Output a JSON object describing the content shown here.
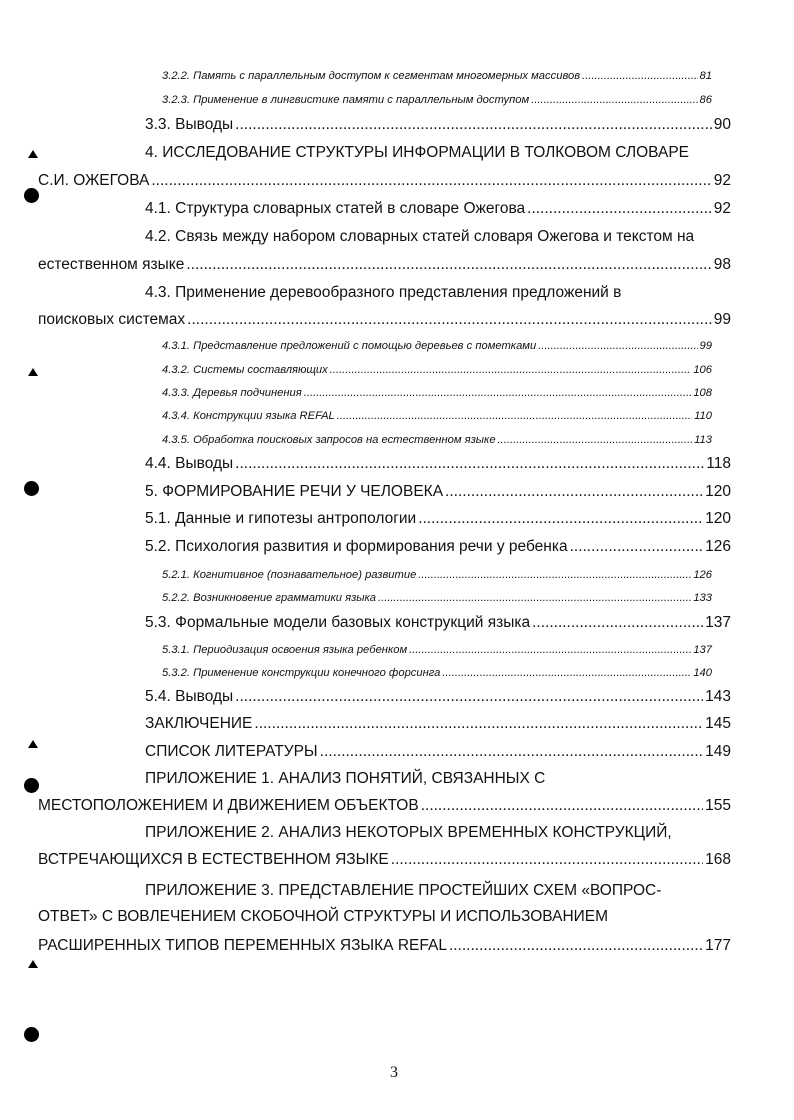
{
  "toc": [
    {
      "level": 3,
      "lines": [
        "3.2.2. Память с параллельным доступом к сегментам многомерных массивов"
      ],
      "page": "81"
    },
    {
      "level": 3,
      "lines": [
        "3.2.3. Применение в лингвистике памяти с параллельным доступом"
      ],
      "page": "86"
    },
    {
      "level": 2,
      "lines": [
        "3.3. Выводы"
      ],
      "page": "90"
    },
    {
      "level": 2,
      "lines": [
        "4. ИССЛЕДОВАНИЕ СТРУКТУРЫ ИНФОРМАЦИИ В ТОЛКОВОМ СЛОВАРЕ",
        "С.И. ОЖЕГОВА"
      ],
      "page": "92"
    },
    {
      "level": 2,
      "lines": [
        "4.1. Структура словарных статей в словаре Ожегова"
      ],
      "page": "92"
    },
    {
      "level": 2,
      "lines": [
        "4.2. Связь между набором словарных статей словаря Ожегова и текстом на",
        "естественном языке"
      ],
      "page": "98"
    },
    {
      "level": 2,
      "lines": [
        "4.3. Применение деревообразного представления предложений в",
        "поисковых системах"
      ],
      "page": "99"
    },
    {
      "level": 3,
      "lines": [
        "4.3.1. Представление предложений с помощью деревьев с пометками"
      ],
      "page": "99"
    },
    {
      "level": 3,
      "lines": [
        "4.3.2. Системы составляющих"
      ],
      "page": "106"
    },
    {
      "level": 3,
      "lines": [
        "4.3.3. Деревья подчинения"
      ],
      "page": "108"
    },
    {
      "level": 3,
      "lines": [
        "4.3.4. Конструкции языка REFAL"
      ],
      "page": "110"
    },
    {
      "level": 3,
      "lines": [
        "4.3.5. Обработка поисковых запросов на естественном языке"
      ],
      "page": "113"
    },
    {
      "level": 2,
      "lines": [
        "4.4. Выводы"
      ],
      "page": "118"
    },
    {
      "level": 2,
      "lines": [
        "5. ФОРМИРОВАНИЕ РЕЧИ У ЧЕЛОВЕКА"
      ],
      "page": "120"
    },
    {
      "level": 2,
      "lines": [
        "5.1. Данные и гипотезы антропологии"
      ],
      "page": "120"
    },
    {
      "level": 2,
      "lines": [
        "5.2. Психология развития и формирования речи у ребенка"
      ],
      "page": "126"
    },
    {
      "level": 3,
      "lines": [
        "5.2.1. Когнитивное (познавательное) развитие"
      ],
      "page": "126"
    },
    {
      "level": 3,
      "lines": [
        "5.2.2. Возникновение грамматики языка"
      ],
      "page": "133"
    },
    {
      "level": 2,
      "lines": [
        "5.3. Формальные модели базовых конструкций языка"
      ],
      "page": "137"
    },
    {
      "level": 3,
      "lines": [
        "5.3.1. Периодизация освоения языка ребенком"
      ],
      "page": "137"
    },
    {
      "level": 3,
      "lines": [
        "5.3.2. Применение конструкции конечного форсинга"
      ],
      "page": "140"
    },
    {
      "level": 2,
      "lines": [
        "5.4. Выводы"
      ],
      "page": "143"
    },
    {
      "level": 2,
      "lines": [
        "ЗАКЛЮЧЕНИЕ"
      ],
      "page": "145"
    },
    {
      "level": 2,
      "lines": [
        "СПИСОК ЛИТЕРАТУРЫ"
      ],
      "page": "149"
    },
    {
      "level": 2,
      "lines": [
        "ПРИЛОЖЕНИЕ 1. АНАЛИЗ ПОНЯТИЙ, СВЯЗАННЫХ С",
        "МЕСТОПОЛОЖЕНИЕМ И ДВИЖЕНИЕМ ОБЪЕКТОВ"
      ],
      "page": "155"
    },
    {
      "level": 2,
      "lines": [
        "ПРИЛОЖЕНИЕ 2. АНАЛИЗ НЕКОТОРЫХ ВРЕМЕННЫХ КОНСТРУКЦИЙ,",
        "ВСТРЕЧАЮЩИХСЯ В ЕСТЕСТВЕННОМ ЯЗЫКЕ"
      ],
      "page": "168"
    },
    {
      "level": 2,
      "lines": [
        "ПРИЛОЖЕНИЕ 3. ПРЕДСТАВЛЕНИЕ ПРОСТЕЙШИХ СХЕМ «ВОПРОС-",
        "ОТВЕТ» С ВОВЛЕЧЕНИЕМ СКОБОЧНОЙ СТРУКТУРЫ И ИСПОЛЬЗОВАНИЕМ",
        "РАСШИРЕННЫХ ТИПОВ ПЕРЕМЕННЫХ ЯЗЫКА REFAL"
      ],
      "page": "177"
    }
  ],
  "page_number": "3"
}
